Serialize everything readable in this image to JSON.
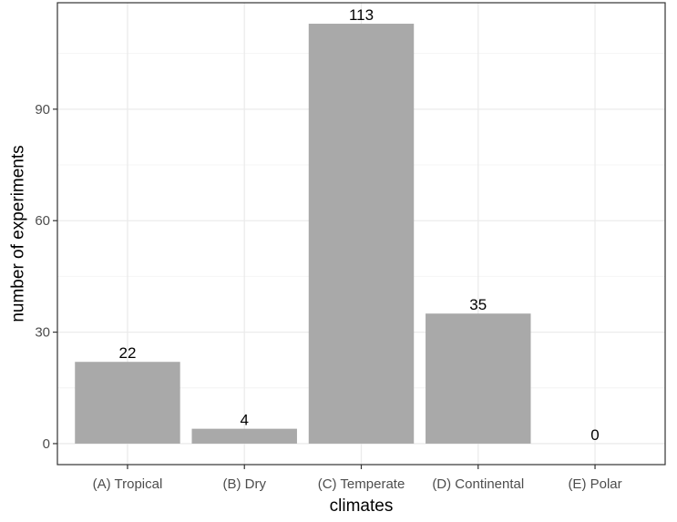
{
  "chart_data": {
    "type": "bar",
    "categories": [
      "(A) Tropical",
      "(B) Dry",
      "(C) Temperate",
      "(D) Continental",
      "(E) Polar"
    ],
    "values": [
      22,
      4,
      113,
      35,
      0
    ],
    "data_labels": [
      "22",
      "4",
      "113",
      "35",
      "0"
    ],
    "xlabel": "climates",
    "ylabel": "number of experiments",
    "yticks": [
      0,
      30,
      60,
      90
    ],
    "ylim": [
      -5.65,
      118.65
    ],
    "grid": true,
    "legend": "none",
    "colors": {
      "bar": "#a9a9a9",
      "grid_major": "#ebebeb",
      "grid_minor": "#f4f4f4",
      "panel_border": "#333333"
    }
  }
}
